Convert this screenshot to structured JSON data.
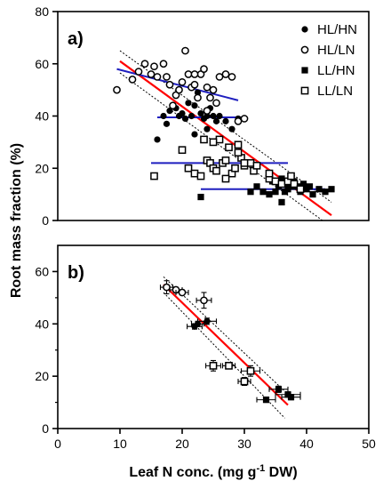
{
  "figure": {
    "ylabel": "Root mass fraction (%)",
    "xlabel_main": "Leaf N conc. (mg g",
    "xlabel_sup": "-1",
    "xlabel_tail": " DW)",
    "x_ticks": [
      "0",
      "10",
      "20",
      "30",
      "40",
      "50"
    ],
    "colors": {
      "regression": "#ff0000",
      "group_fit": "#1f1fbf",
      "ci": "#000000",
      "marker": "#000000"
    }
  },
  "chart_data": [
    {
      "panel_label": "a)",
      "type": "scatter",
      "xlim": [
        0,
        50
      ],
      "ylim": [
        0,
        80
      ],
      "y_ticks": [
        "0",
        "20",
        "40",
        "60",
        "80"
      ],
      "legend": {
        "position": "top-right",
        "entries": [
          {
            "label": "HL/HN",
            "marker": "filled-circle"
          },
          {
            "label": "HL/LN",
            "marker": "open-circle"
          },
          {
            "label": "LL/HN",
            "marker": "filled-square"
          },
          {
            "label": "LL/LN",
            "marker": "open-square"
          }
        ]
      },
      "series": [
        {
          "name": "HL/HN",
          "marker": "filled-circle",
          "points": [
            [
              16,
              31
            ],
            [
              17,
              40
            ],
            [
              17.5,
              37
            ],
            [
              18,
              42
            ],
            [
              18.5,
              44
            ],
            [
              19,
              43
            ],
            [
              19.5,
              40
            ],
            [
              20,
              41
            ],
            [
              20.5,
              39
            ],
            [
              21,
              45
            ],
            [
              21.5,
              40
            ],
            [
              22,
              44
            ],
            [
              22.5,
              49
            ],
            [
              23,
              41
            ],
            [
              23.5,
              39
            ],
            [
              24,
              40
            ],
            [
              24.5,
              43
            ],
            [
              25,
              40
            ],
            [
              25.5,
              38
            ],
            [
              26,
              40
            ],
            [
              27,
              38
            ],
            [
              28,
              35
            ],
            [
              29,
              39
            ],
            [
              22,
              33
            ],
            [
              24,
              35
            ]
          ]
        },
        {
          "name": "HL/LN",
          "marker": "open-circle",
          "points": [
            [
              9.5,
              50
            ],
            [
              12,
              54
            ],
            [
              13,
              57
            ],
            [
              14,
              60
            ],
            [
              15,
              56
            ],
            [
              15.5,
              59
            ],
            [
              16,
              55
            ],
            [
              17,
              60
            ],
            [
              17.5,
              55
            ],
            [
              18,
              52
            ],
            [
              19,
              48
            ],
            [
              19.5,
              50
            ],
            [
              20,
              53
            ],
            [
              20.5,
              65
            ],
            [
              21,
              56
            ],
            [
              21.5,
              51
            ],
            [
              22,
              52
            ],
            [
              22.5,
              47
            ],
            [
              23,
              56
            ],
            [
              23.5,
              58
            ],
            [
              24,
              51
            ],
            [
              24.5,
              47
            ],
            [
              25,
              50
            ],
            [
              25.5,
              45
            ],
            [
              26,
              55
            ],
            [
              27,
              56
            ],
            [
              28,
              55
            ],
            [
              29,
              38
            ],
            [
              30,
              39
            ],
            [
              24,
              42
            ],
            [
              22,
              56
            ],
            [
              18.5,
              44
            ]
          ]
        },
        {
          "name": "LL/HN",
          "marker": "filled-square",
          "points": [
            [
              23,
              9
            ],
            [
              31,
              11
            ],
            [
              32,
              13
            ],
            [
              33,
              11
            ],
            [
              34,
              10
            ],
            [
              35,
              11
            ],
            [
              35.5,
              13
            ],
            [
              36,
              7
            ],
            [
              36.5,
              11
            ],
            [
              37,
              12
            ],
            [
              37.5,
              13
            ],
            [
              38,
              15
            ],
            [
              38.5,
              13
            ],
            [
              39,
              11
            ],
            [
              39.5,
              14
            ],
            [
              40,
              12
            ],
            [
              40.5,
              13
            ],
            [
              41,
              10
            ],
            [
              42,
              12
            ],
            [
              43,
              11
            ],
            [
              44,
              12
            ],
            [
              36,
              16
            ],
            [
              37,
              14
            ],
            [
              34.5,
              15
            ]
          ]
        },
        {
          "name": "LL/LN",
          "marker": "open-square",
          "points": [
            [
              15.5,
              17
            ],
            [
              20,
              27
            ],
            [
              21,
              20
            ],
            [
              22,
              18
            ],
            [
              23,
              17
            ],
            [
              23.5,
              31
            ],
            [
              24,
              23
            ],
            [
              24.5,
              22
            ],
            [
              25,
              20
            ],
            [
              25.5,
              19
            ],
            [
              26,
              31
            ],
            [
              26.5,
              22
            ],
            [
              27,
              23
            ],
            [
              27.5,
              28
            ],
            [
              28,
              18
            ],
            [
              28.5,
              20
            ],
            [
              29,
              29
            ],
            [
              29.5,
              24
            ],
            [
              30,
              21
            ],
            [
              31,
              22
            ],
            [
              31.5,
              19
            ],
            [
              32,
              21
            ],
            [
              34,
              16
            ],
            [
              35,
              15
            ],
            [
              36,
              14
            ],
            [
              37,
              15
            ],
            [
              37.5,
              17
            ],
            [
              38,
              14
            ],
            [
              39,
              12
            ],
            [
              25,
              30
            ],
            [
              27,
              16
            ],
            [
              29,
              26
            ],
            [
              30,
              22
            ],
            [
              34,
              18
            ]
          ]
        }
      ],
      "fits": [
        {
          "kind": "regression",
          "x": [
            10,
            44
          ],
          "y": [
            61,
            2
          ]
        },
        {
          "kind": "ci_upper",
          "x": [
            10,
            44
          ],
          "y": [
            65,
            7
          ]
        },
        {
          "kind": "ci_lower",
          "x": [
            10,
            44
          ],
          "y": [
            56.5,
            -2.5
          ]
        },
        {
          "kind": "group_fit",
          "x": [
            9.5,
            29
          ],
          "y": [
            58,
            46
          ]
        },
        {
          "kind": "group_fit",
          "x": [
            16,
            30
          ],
          "y": [
            39.5,
            39.5
          ]
        },
        {
          "kind": "group_fit",
          "x": [
            15,
            37
          ],
          "y": [
            22,
            22
          ]
        },
        {
          "kind": "group_fit",
          "x": [
            23,
            43
          ],
          "y": [
            12,
            12
          ]
        }
      ]
    },
    {
      "panel_label": "b)",
      "type": "scatter",
      "xlim": [
        0,
        50
      ],
      "ylim": [
        0,
        70
      ],
      "y_ticks": [
        "0",
        "20",
        "40",
        "60"
      ],
      "series": [
        {
          "name": "HL/HN",
          "marker": "filled-circle",
          "points": [
            {
              "x": 22,
              "y": 39,
              "xerr": 1.2,
              "yerr": 1
            },
            {
              "x": 22.5,
              "y": 40,
              "xerr": 1,
              "yerr": 1
            },
            {
              "x": 24,
              "y": 41,
              "xerr": 1.5,
              "yerr": 1.2
            }
          ]
        },
        {
          "name": "HL/LN",
          "marker": "open-circle",
          "points": [
            {
              "x": 17.5,
              "y": 54,
              "xerr": 1,
              "yerr": 2.5
            },
            {
              "x": 19,
              "y": 53,
              "xerr": 1,
              "yerr": 1
            },
            {
              "x": 20,
              "y": 52,
              "xerr": 1,
              "yerr": 1
            },
            {
              "x": 23.5,
              "y": 49,
              "xerr": 1.2,
              "yerr": 3
            }
          ]
        },
        {
          "name": "LL/HN",
          "marker": "filled-square",
          "points": [
            {
              "x": 33.5,
              "y": 11,
              "xerr": 1.5,
              "yerr": 1
            },
            {
              "x": 35.5,
              "y": 15,
              "xerr": 1.5,
              "yerr": 1.2
            },
            {
              "x": 37,
              "y": 13,
              "xerr": 2,
              "yerr": 1
            },
            {
              "x": 37.5,
              "y": 12,
              "xerr": 1.5,
              "yerr": 1
            }
          ]
        },
        {
          "name": "LL/LN",
          "marker": "open-square",
          "points": [
            {
              "x": 25,
              "y": 24,
              "xerr": 1.2,
              "yerr": 2
            },
            {
              "x": 27.5,
              "y": 24,
              "xerr": 1,
              "yerr": 1
            },
            {
              "x": 30,
              "y": 18,
              "xerr": 1,
              "yerr": 1.5
            },
            {
              "x": 31,
              "y": 22,
              "xerr": 1.5,
              "yerr": 2
            }
          ]
        }
      ],
      "fits": [
        {
          "kind": "regression",
          "x": [
            17,
            37
          ],
          "y": [
            55,
            9
          ]
        },
        {
          "kind": "ci_upper",
          "x": [
            17,
            37.5
          ],
          "y": [
            58,
            12
          ]
        },
        {
          "kind": "ci_lower",
          "x": [
            17,
            36.5
          ],
          "y": [
            52,
            4
          ]
        }
      ]
    }
  ]
}
